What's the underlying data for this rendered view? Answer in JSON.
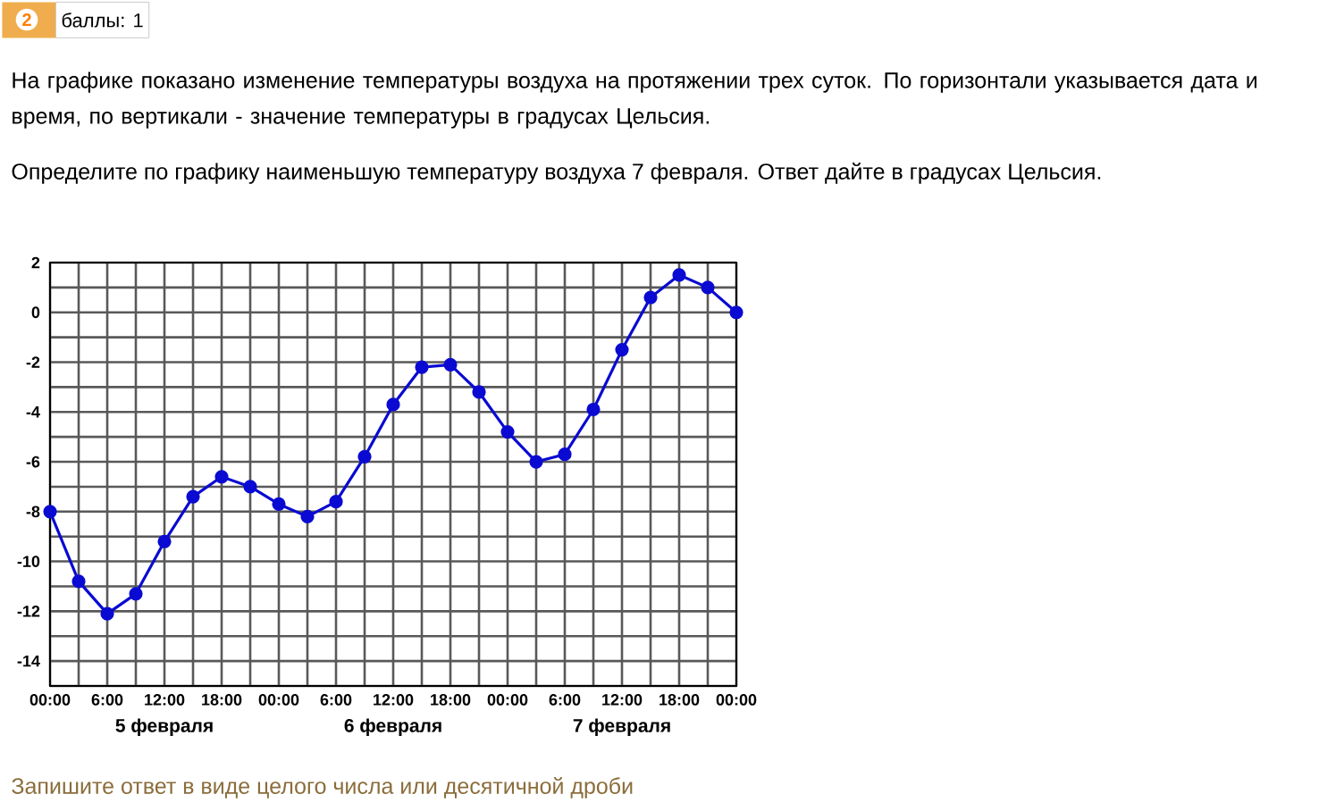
{
  "chart_data": {
    "type": "line",
    "title": "На графике показано изменение температуры воздуха на протяжении трех суток. По горизонтали указывается дата и время, по вертикали - значение температуры в градусах Цельсия.",
    "subtitle": "Определите по графику наименьшую температуру воздуха 7 февраля. Ответ дайте в градусах Цельсия.",
    "annotations": [
      "5 февраля",
      "6 февраля",
      "7 февраля",
      "Запишите ответ в виде целого числа или десятичной дроби",
      "2",
      "баллы: 1"
    ],
    "categories": [
      "00:00",
      null,
      "6:00",
      null,
      "12:00",
      null,
      "18:00",
      null,
      "00:00",
      null,
      "6:00",
      null,
      "12:00",
      null,
      "18:00",
      null,
      "00:00",
      null,
      "6:00",
      null,
      "12:00",
      null,
      "18:00",
      null,
      "00:00"
    ],
    "series": [
      {
        "color": "#0a0ad2",
        "values": [
          -8,
          -10.8,
          -12.1,
          -11.3,
          -9.2,
          -7.4,
          -6.6,
          -7.0,
          -7.7,
          -8.2,
          -7.6,
          -5.8,
          -3.7,
          -2.2,
          -2.1,
          -3.2,
          -4.8,
          -6.0,
          -5.7,
          -3.9,
          -1.5,
          0.6,
          1.5,
          1.0,
          0
        ]
      }
    ],
    "ylim": [
      -15,
      2
    ],
    "yticks": [
      {
        "value": -15,
        "label": null
      },
      -14,
      {
        "value": -13,
        "label": null
      },
      -12,
      {
        "value": -11,
        "label": null
      },
      -10,
      {
        "value": -9,
        "label": null
      },
      -8,
      {
        "value": -7,
        "label": null
      },
      -6,
      {
        "value": -5,
        "label": null
      },
      -4,
      {
        "value": -3,
        "label": null
      },
      -2,
      {
        "value": -1,
        "label": null
      },
      0,
      {
        "value": 1,
        "label": null
      },
      2
    ],
    "grid": true,
    "marker": "circle",
    "line_style": "solid"
  }
}
